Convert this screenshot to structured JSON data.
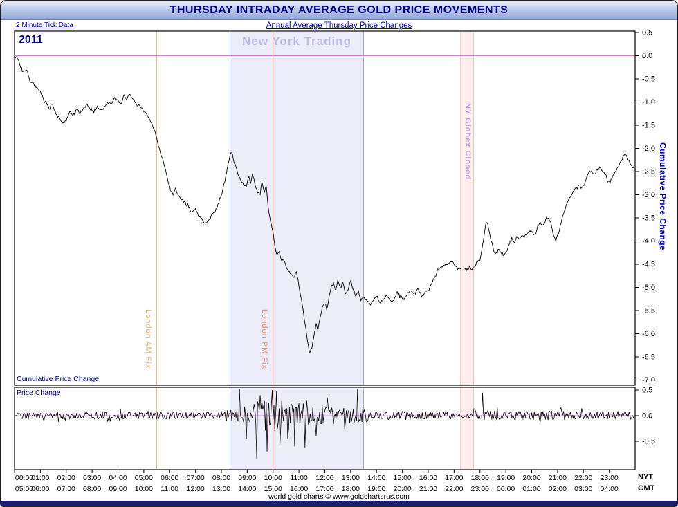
{
  "window": {
    "title": "THURSDAY INTRADAY AVERAGE GOLD PRICE MOVEMENTS",
    "subtitle_left": "2 Minute Tick Data",
    "subtitle_center": "Annual Average Thursday Price Changes",
    "footer_credit": "world gold charts © www.goldchartsrus.com"
  },
  "axis_corner": {
    "nyt": "NYT",
    "gmt": "GMT"
  },
  "colors": {
    "title_navy": "#00008b",
    "link_blue": "#0000bb",
    "right_axis_blue": "#0000cc",
    "zero_line": "#cf7fcf",
    "series_line": "#000000",
    "ny_trading_fill": "#edecf9",
    "ny_trading_border": "#a6a6de",
    "globex_fill": "#fdeeee",
    "globex_border": "#ecc6c6",
    "am_fix_orange": "#f2b873",
    "pm_fix_orange": "#ef9077"
  },
  "chart_data": {
    "type": "line",
    "title": "Thursday Intraday Average Gold Price Movements",
    "subtitle": "Annual Average Thursday Price Changes",
    "year_label": "2011",
    "tick_interval": "2 Minute Tick Data",
    "x_axis": {
      "unit": "time of day (hours)",
      "nyt_labels": [
        "00:00",
        "01:00",
        "02:00",
        "03:00",
        "04:00",
        "05:00",
        "06:00",
        "07:00",
        "08:00",
        "09:00",
        "10:00",
        "11:00",
        "12:00",
        "13:00",
        "14:00",
        "15:00",
        "16:00",
        "17:00",
        "18:00",
        "19:00",
        "20:00",
        "21:00",
        "22:00",
        "23:00"
      ],
      "gmt_labels": [
        "05:00",
        "06:00",
        "07:00",
        "08:00",
        "09:00",
        "10:00",
        "11:00",
        "12:00",
        "13:00",
        "14:00",
        "15:00",
        "16:00",
        "17:00",
        "18:00",
        "19:00",
        "20:00",
        "21:00",
        "22:00",
        "23:00",
        "00:00",
        "01:00",
        "02:00",
        "03:00",
        "04:00"
      ]
    },
    "regions": [
      {
        "label": "New York Trading",
        "start_minute": 500,
        "end_minute": 810,
        "fill": "#edecf9",
        "border": "#a6a6de",
        "label_color": "#bfbce9"
      },
      {
        "label": "NY Globex Closed",
        "start_minute": 1035,
        "end_minute": 1065,
        "fill": "#fdeeee",
        "border": "#ecc6c6",
        "label_color": "#b9a3dd"
      }
    ],
    "vlines": [
      {
        "label": "London AM Fix",
        "minute": 330,
        "color": "#f2b873"
      },
      {
        "label": "London PM Fix",
        "minute": 600,
        "color": "#ef9077"
      }
    ],
    "zero_line_color": "#cf7fcf",
    "line_color": "#000000",
    "noise_amp_cumulative": 0.04,
    "panels": [
      {
        "name": "cumulative",
        "corner_label": "Cumulative Price Change",
        "right_axis_label": "Cumulative Price Change",
        "ylim": [
          -7.0,
          0.5
        ],
        "ytick_labels": [
          "0.5",
          "0.0",
          "-0.5",
          "-1.0",
          "-1.5",
          "-2.0",
          "-2.5",
          "-3.0",
          "-3.5",
          "-4.0",
          "-4.5",
          "-5.0",
          "-5.5",
          "-6.0",
          "-6.5",
          "-7.0"
        ],
        "series_anchors": [
          [
            0,
            0.0
          ],
          [
            6,
            -0.05
          ],
          [
            12,
            -0.2
          ],
          [
            20,
            -0.35
          ],
          [
            28,
            -0.3
          ],
          [
            36,
            -0.55
          ],
          [
            44,
            -0.6
          ],
          [
            52,
            -0.7
          ],
          [
            60,
            -0.78
          ],
          [
            70,
            -0.95
          ],
          [
            80,
            -1.15
          ],
          [
            88,
            -1.05
          ],
          [
            96,
            -1.25
          ],
          [
            104,
            -1.35
          ],
          [
            112,
            -1.45
          ],
          [
            120,
            -1.4
          ],
          [
            128,
            -1.2
          ],
          [
            136,
            -1.3
          ],
          [
            144,
            -1.15
          ],
          [
            152,
            -1.25
          ],
          [
            160,
            -1.15
          ],
          [
            168,
            -1.05
          ],
          [
            176,
            -1.15
          ],
          [
            184,
            -1.2
          ],
          [
            192,
            -1.1
          ],
          [
            200,
            -1.18
          ],
          [
            208,
            -1.12
          ],
          [
            216,
            -1.0
          ],
          [
            224,
            -1.05
          ],
          [
            232,
            -0.92
          ],
          [
            240,
            -0.95
          ],
          [
            248,
            -1.05
          ],
          [
            254,
            -0.85
          ],
          [
            260,
            -0.95
          ],
          [
            266,
            -0.82
          ],
          [
            272,
            -0.9
          ],
          [
            280,
            -1.02
          ],
          [
            290,
            -1.1
          ],
          [
            300,
            -1.18
          ],
          [
            310,
            -1.32
          ],
          [
            318,
            -1.45
          ],
          [
            326,
            -1.65
          ],
          [
            334,
            -1.95
          ],
          [
            342,
            -2.2
          ],
          [
            350,
            -2.45
          ],
          [
            356,
            -2.7
          ],
          [
            362,
            -2.9
          ],
          [
            368,
            -3.0
          ],
          [
            374,
            -2.85
          ],
          [
            380,
            -3.02
          ],
          [
            388,
            -3.1
          ],
          [
            396,
            -3.18
          ],
          [
            404,
            -3.28
          ],
          [
            412,
            -3.38
          ],
          [
            420,
            -3.3
          ],
          [
            428,
            -3.48
          ],
          [
            436,
            -3.55
          ],
          [
            444,
            -3.62
          ],
          [
            452,
            -3.55
          ],
          [
            458,
            -3.42
          ],
          [
            466,
            -3.35
          ],
          [
            474,
            -3.15
          ],
          [
            482,
            -2.95
          ],
          [
            490,
            -2.6
          ],
          [
            498,
            -2.25
          ],
          [
            503,
            -2.05
          ],
          [
            508,
            -2.25
          ],
          [
            514,
            -2.4
          ],
          [
            520,
            -2.6
          ],
          [
            526,
            -2.7
          ],
          [
            532,
            -2.8
          ],
          [
            538,
            -2.82
          ],
          [
            543,
            -2.6
          ],
          [
            548,
            -2.75
          ],
          [
            553,
            -2.55
          ],
          [
            558,
            -2.8
          ],
          [
            564,
            -2.95
          ],
          [
            570,
            -3.0
          ],
          [
            574,
            -2.7
          ],
          [
            579,
            -2.95
          ],
          [
            584,
            -2.78
          ],
          [
            589,
            -3.3
          ],
          [
            594,
            -3.55
          ],
          [
            599,
            -3.75
          ],
          [
            604,
            -4.1
          ],
          [
            609,
            -4.3
          ],
          [
            614,
            -4.2
          ],
          [
            619,
            -4.45
          ],
          [
            624,
            -4.38
          ],
          [
            630,
            -4.55
          ],
          [
            636,
            -4.65
          ],
          [
            642,
            -4.72
          ],
          [
            648,
            -4.78
          ],
          [
            654,
            -4.68
          ],
          [
            660,
            -4.95
          ],
          [
            665,
            -5.25
          ],
          [
            670,
            -5.5
          ],
          [
            675,
            -5.85
          ],
          [
            680,
            -6.15
          ],
          [
            685,
            -6.45
          ],
          [
            690,
            -6.3
          ],
          [
            695,
            -6.0
          ],
          [
            700,
            -5.8
          ],
          [
            705,
            -5.9
          ],
          [
            710,
            -5.6
          ],
          [
            715,
            -5.42
          ],
          [
            720,
            -5.35
          ],
          [
            725,
            -5.5
          ],
          [
            730,
            -5.2
          ],
          [
            735,
            -5.0
          ],
          [
            740,
            -4.9
          ],
          [
            745,
            -5.1
          ],
          [
            750,
            -4.85
          ],
          [
            756,
            -5.0
          ],
          [
            762,
            -4.9
          ],
          [
            768,
            -5.15
          ],
          [
            774,
            -5.05
          ],
          [
            780,
            -4.85
          ],
          [
            786,
            -5.05
          ],
          [
            792,
            -5.2
          ],
          [
            798,
            -5.08
          ],
          [
            804,
            -5.28
          ],
          [
            810,
            -5.2
          ],
          [
            818,
            -5.3
          ],
          [
            826,
            -5.38
          ],
          [
            834,
            -5.25
          ],
          [
            840,
            -5.18
          ],
          [
            848,
            -5.32
          ],
          [
            856,
            -5.28
          ],
          [
            864,
            -5.18
          ],
          [
            872,
            -5.3
          ],
          [
            880,
            -5.28
          ],
          [
            888,
            -5.1
          ],
          [
            896,
            -5.18
          ],
          [
            904,
            -5.25
          ],
          [
            912,
            -5.12
          ],
          [
            920,
            -5.08
          ],
          [
            928,
            -5.15
          ],
          [
            936,
            -5.02
          ],
          [
            944,
            -5.18
          ],
          [
            952,
            -5.1
          ],
          [
            960,
            -5.08
          ],
          [
            968,
            -4.9
          ],
          [
            976,
            -4.75
          ],
          [
            984,
            -4.62
          ],
          [
            992,
            -4.55
          ],
          [
            1000,
            -4.52
          ],
          [
            1008,
            -4.48
          ],
          [
            1016,
            -4.45
          ],
          [
            1024,
            -4.55
          ],
          [
            1032,
            -4.6
          ],
          [
            1040,
            -4.58
          ],
          [
            1048,
            -4.62
          ],
          [
            1056,
            -4.6
          ],
          [
            1062,
            -4.62
          ],
          [
            1068,
            -4.55
          ],
          [
            1074,
            -4.45
          ],
          [
            1080,
            -4.4
          ],
          [
            1085,
            -4.15
          ],
          [
            1090,
            -3.85
          ],
          [
            1095,
            -3.55
          ],
          [
            1100,
            -3.75
          ],
          [
            1106,
            -4.0
          ],
          [
            1112,
            -4.2
          ],
          [
            1118,
            -4.28
          ],
          [
            1124,
            -4.15
          ],
          [
            1130,
            -4.25
          ],
          [
            1136,
            -4.3
          ],
          [
            1142,
            -4.22
          ],
          [
            1148,
            -4.05
          ],
          [
            1154,
            -3.95
          ],
          [
            1160,
            -4.05
          ],
          [
            1166,
            -3.88
          ],
          [
            1172,
            -3.95
          ],
          [
            1178,
            -3.85
          ],
          [
            1184,
            -3.92
          ],
          [
            1190,
            -3.82
          ],
          [
            1196,
            -3.78
          ],
          [
            1202,
            -3.82
          ],
          [
            1208,
            -3.88
          ],
          [
            1214,
            -3.7
          ],
          [
            1220,
            -3.6
          ],
          [
            1226,
            -3.68
          ],
          [
            1232,
            -3.55
          ],
          [
            1238,
            -3.48
          ],
          [
            1244,
            -3.6
          ],
          [
            1250,
            -3.85
          ],
          [
            1256,
            -3.95
          ],
          [
            1262,
            -3.85
          ],
          [
            1268,
            -3.6
          ],
          [
            1274,
            -3.4
          ],
          [
            1280,
            -3.25
          ],
          [
            1286,
            -3.1
          ],
          [
            1292,
            -3.0
          ],
          [
            1298,
            -2.92
          ],
          [
            1304,
            -2.85
          ],
          [
            1310,
            -2.78
          ],
          [
            1316,
            -2.85
          ],
          [
            1322,
            -2.8
          ],
          [
            1328,
            -2.6
          ],
          [
            1334,
            -2.5
          ],
          [
            1340,
            -2.52
          ],
          [
            1346,
            -2.58
          ],
          [
            1352,
            -2.48
          ],
          [
            1358,
            -2.4
          ],
          [
            1364,
            -2.48
          ],
          [
            1370,
            -2.55
          ],
          [
            1376,
            -2.7
          ],
          [
            1382,
            -2.72
          ],
          [
            1388,
            -2.58
          ],
          [
            1394,
            -2.5
          ],
          [
            1400,
            -2.4
          ],
          [
            1406,
            -2.3
          ],
          [
            1412,
            -2.2
          ],
          [
            1418,
            -2.12
          ],
          [
            1424,
            -2.25
          ],
          [
            1430,
            -2.35
          ],
          [
            1436,
            -2.4
          ],
          [
            1439,
            -2.38
          ]
        ]
      },
      {
        "name": "tick_change",
        "corner_label": "Price Change",
        "ylim": [
          -0.9,
          0.5
        ],
        "ytick_labels": [
          "0.5",
          "0.0",
          "-0.5"
        ],
        "noise_envelope": [
          [
            0,
            0.07
          ],
          [
            470,
            0.07
          ],
          [
            485,
            0.1
          ],
          [
            530,
            0.13
          ],
          [
            542,
            0.28
          ],
          [
            600,
            0.3
          ],
          [
            660,
            0.28
          ],
          [
            692,
            0.18
          ],
          [
            810,
            0.14
          ],
          [
            825,
            0.09
          ],
          [
            1008,
            0.08
          ],
          [
            1020,
            0.045
          ],
          [
            1062,
            0.045
          ],
          [
            1066,
            0.16
          ],
          [
            1082,
            0.1
          ],
          [
            1439,
            0.08
          ]
        ],
        "spikes": [
          [
            522,
            0.55
          ],
          [
            538,
            -0.45
          ],
          [
            562,
            -0.85
          ],
          [
            570,
            0.4
          ],
          [
            586,
            -0.7
          ],
          [
            598,
            0.5
          ],
          [
            608,
            0.48
          ],
          [
            616,
            -0.55
          ],
          [
            634,
            -0.45
          ],
          [
            650,
            -0.6
          ],
          [
            674,
            -0.62
          ],
          [
            700,
            -0.4
          ],
          [
            726,
            0.35
          ],
          [
            796,
            0.55
          ],
          [
            1086,
            0.45
          ]
        ]
      }
    ]
  }
}
